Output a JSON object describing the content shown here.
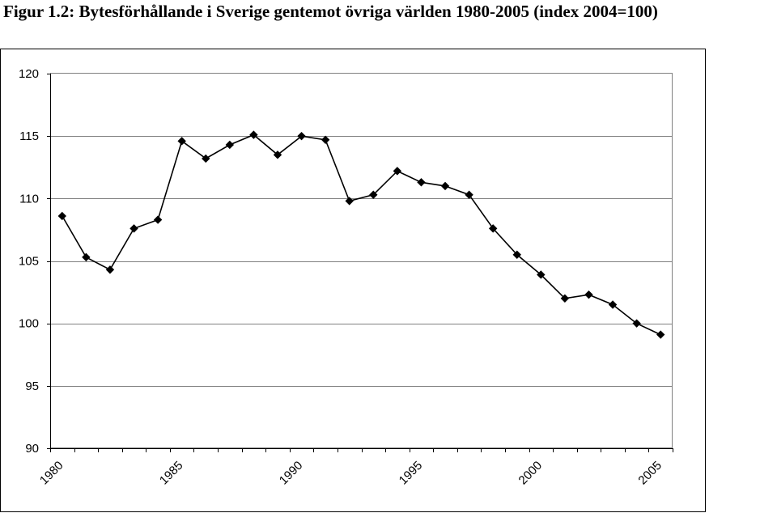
{
  "figure": {
    "title": "Figur 1.2: Bytesförhållande i Sverige gentemot övriga världen 1980-2005 (index 2004=100)"
  },
  "chart_data": {
    "type": "line",
    "title": "Figur 1.2: Bytesförhållande i Sverige gentemot övriga världen 1980-2005 (index 2004=100)",
    "xlabel": "",
    "ylabel": "",
    "ylim": [
      90,
      120
    ],
    "yticks": [
      90,
      95,
      100,
      105,
      110,
      115,
      120
    ],
    "xlim": [
      1980,
      2005
    ],
    "xticks": [
      1980,
      1985,
      1990,
      1995,
      2000,
      2005
    ],
    "grid": "horizontal",
    "legend": "none",
    "marker": "diamond",
    "color": "#000000",
    "x": [
      1980,
      1981,
      1982,
      1983,
      1984,
      1985,
      1986,
      1987,
      1988,
      1989,
      1990,
      1991,
      1992,
      1993,
      1994,
      1995,
      1996,
      1997,
      1998,
      1999,
      2000,
      2001,
      2002,
      2003,
      2004,
      2005
    ],
    "values": [
      108.6,
      105.3,
      104.3,
      107.6,
      108.3,
      114.6,
      113.2,
      114.3,
      115.1,
      113.5,
      115.0,
      114.7,
      109.8,
      110.3,
      112.2,
      111.3,
      111.0,
      110.3,
      107.6,
      105.5,
      103.9,
      102.0,
      102.3,
      101.5,
      100.0,
      99.1
    ]
  }
}
